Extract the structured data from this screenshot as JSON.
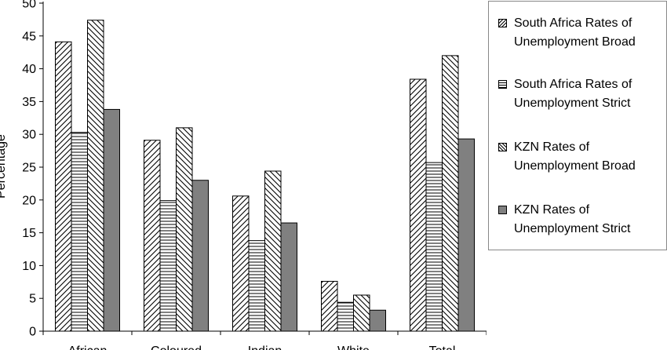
{
  "chart_data": {
    "type": "bar",
    "ylabel": "Percentage",
    "ylim": [
      0,
      50
    ],
    "yticks": [
      "0",
      "5",
      "10",
      "15",
      "20",
      "25",
      "30",
      "35",
      "40",
      "45",
      "50"
    ],
    "categories": [
      "African",
      "Coloured",
      "Indian",
      "White",
      "Total"
    ],
    "legend_position": "right",
    "grid": false,
    "series": [
      {
        "name": "South Africa Rates of Unemployment Broad",
        "pattern": "diagonal-right",
        "values": [
          44.1,
          29.1,
          20.6,
          7.6,
          38.4
        ]
      },
      {
        "name": "South Africa Rates of Unemployment Strict",
        "pattern": "horizontal",
        "values": [
          30.3,
          19.9,
          13.8,
          4.4,
          25.7
        ]
      },
      {
        "name": "KZN Rates of Unemployment Broad",
        "pattern": "diagonal-left",
        "values": [
          47.4,
          31.0,
          24.4,
          5.5,
          42.0
        ]
      },
      {
        "name": "KZN Rates of Unemployment Strict",
        "pattern": "solid-gray",
        "values": [
          33.8,
          23.0,
          16.5,
          3.2,
          29.3
        ]
      }
    ]
  }
}
